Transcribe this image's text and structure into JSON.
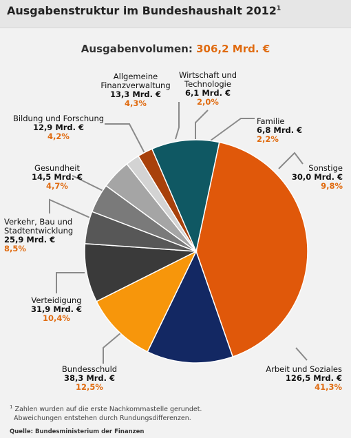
{
  "header": {
    "title": "Ausgabenstruktur im Bundeshaushalt 2012",
    "footnote_marker": "1"
  },
  "subtitle": {
    "label": "Ausgabenvolumen:",
    "value": "306,2 Mrd. €"
  },
  "chart_data": {
    "type": "pie",
    "title": "Ausgabenstruktur im Bundeshaushalt 2012",
    "total": "306,2 Mrd. €",
    "slices": [
      {
        "name": [
          "Arbeit und Soziales"
        ],
        "amount": "126,5 Mrd. €",
        "percent_label": "41,3%",
        "value": 41.3,
        "color": "#e0580a"
      },
      {
        "name": [
          "Bundesschuld"
        ],
        "amount": "38,3 Mrd. €",
        "percent_label": "12,5%",
        "value": 12.5,
        "color": "#132863"
      },
      {
        "name": [
          "Verteidigung"
        ],
        "amount": "31,9 Mrd. €",
        "percent_label": "10,4%",
        "value": 10.4,
        "color": "#f7960b"
      },
      {
        "name": [
          "Verkehr, Bau und",
          "Stadtentwicklung"
        ],
        "amount": "25,9 Mrd. €",
        "percent_label": "8,5%",
        "value": 8.5,
        "color": "#3a3a3a"
      },
      {
        "name": [
          "Gesundheit"
        ],
        "amount": "14,5 Mrd. €",
        "percent_label": "4,7%",
        "value": 4.7,
        "color": "#575757"
      },
      {
        "name": [
          "Bildung und Forschung"
        ],
        "amount": "12,9 Mrd. €",
        "percent_label": "4,2%",
        "value": 4.2,
        "color": "#7a7a7a"
      },
      {
        "name": [
          "Allgemeine",
          "Finanzverwaltung"
        ],
        "amount": "13,3 Mrd. €",
        "percent_label": "4,3%",
        "value": 4.3,
        "color": "#a5a5a5"
      },
      {
        "name": [
          "Wirtschaft und",
          "Technologie"
        ],
        "amount": "6,1 Mrd. €",
        "percent_label": "2,0%",
        "value": 2.0,
        "color": "#d3d3d3"
      },
      {
        "name": [
          "Familie"
        ],
        "amount": "6,8 Mrd. €",
        "percent_label": "2,2%",
        "value": 2.2,
        "color": "#a8410b"
      },
      {
        "name": [
          "Sonstige"
        ],
        "amount": "30,0 Mrd. €",
        "percent_label": "9,8%",
        "value": 9.8,
        "color": "#0f5863"
      }
    ]
  },
  "footnote": {
    "marker": "1",
    "line1": "Zahlen wurden auf die erste Nachkommastelle gerundet.",
    "line2": "Abweichungen entstehen durch Rundungsdifferenzen."
  },
  "source": "Quelle: Bundesministerium der Finanzen"
}
